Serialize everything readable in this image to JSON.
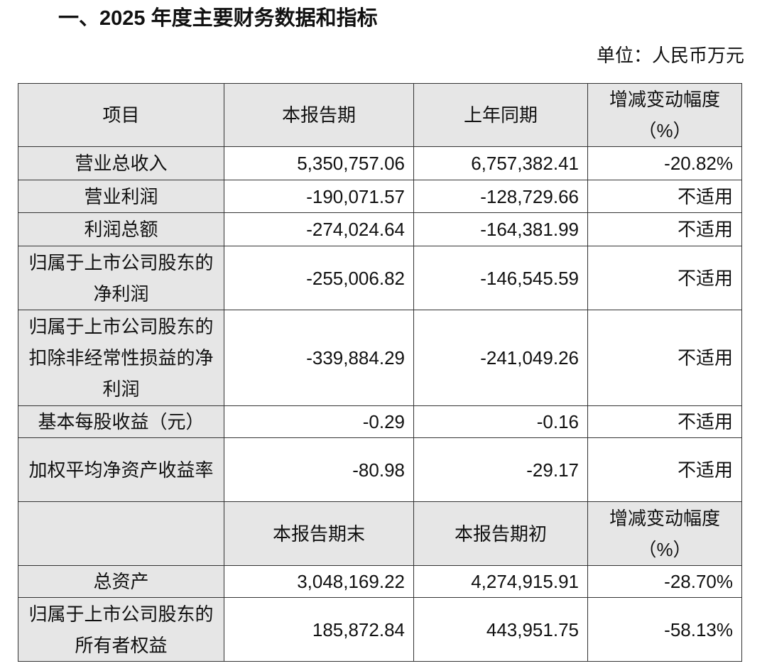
{
  "title": "一、2025 年度主要财务数据和指标",
  "unit": "单位：人民币万元",
  "header1": [
    "项目",
    "本报告期",
    "上年同期",
    "增减变动幅度（%）"
  ],
  "rows1": [
    {
      "label": "营业总收入",
      "current": "5,350,757.06",
      "prior": "6,757,382.41",
      "change": "-20.82%"
    },
    {
      "label": "营业利润",
      "current": "-190,071.57",
      "prior": "-128,729.66",
      "change": "不适用"
    },
    {
      "label": "利润总额",
      "current": "-274,024.64",
      "prior": "-164,381.99",
      "change": "不适用"
    },
    {
      "label": "归属于上市公司股东的净利润",
      "current": "-255,006.82",
      "prior": "-146,545.59",
      "change": "不适用"
    },
    {
      "label": "归属于上市公司股东的扣除非经常性损益的净利润",
      "current": "-339,884.29",
      "prior": "-241,049.26",
      "change": "不适用"
    },
    {
      "label": "基本每股收益（元）",
      "current": "-0.29",
      "prior": "-0.16",
      "change": "不适用"
    },
    {
      "label": "加权平均净资产收益率",
      "current": "-80.98",
      "prior": "-29.17",
      "change": "不适用"
    }
  ],
  "header2": [
    "",
    "本报告期末",
    "本报告期初",
    "增减变动幅度（%）"
  ],
  "rows2": [
    {
      "label": "总资产",
      "current": "3,048,169.22",
      "prior": "4,274,915.91",
      "change": "-28.70%"
    },
    {
      "label": "归属于上市公司股东的所有者权益",
      "current": "185,872.84",
      "prior": "443,951.75",
      "change": "-58.13%"
    }
  ]
}
